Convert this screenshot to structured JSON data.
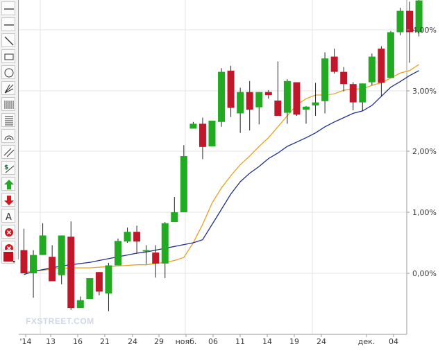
{
  "toolbar": {
    "tools": [
      {
        "name": "horizontal-line-icon"
      },
      {
        "name": "horizontal-line-icon-2"
      },
      {
        "name": "trend-line-icon"
      },
      {
        "name": "rectangle-icon"
      },
      {
        "name": "ellipse-icon"
      },
      {
        "name": "pitchfork-icon"
      },
      {
        "name": "vertical-grid-icon"
      },
      {
        "name": "horizontal-grid-icon"
      },
      {
        "name": "arc-icon"
      },
      {
        "name": "channel-icon"
      },
      {
        "name": "price-label-icon"
      },
      {
        "name": "up-arrow-icon"
      },
      {
        "name": "down-arrow-icon"
      },
      {
        "name": "text-tool-icon",
        "label": "A"
      },
      {
        "name": "delete-icon"
      },
      {
        "name": "delete-all-icon"
      },
      {
        "name": "color-picker-icon"
      }
    ]
  },
  "watermark": "FXSTREET.COM",
  "colors": {
    "up": "#22aa22",
    "down": "#c0182a",
    "ma_fast": "#e8a020",
    "ma_slow": "#1f2f8a",
    "grid": "#e3e3e3"
  },
  "chart_data": {
    "type": "candlestick",
    "x_tick_labels": [
      "'14",
      "13",
      "16",
      "21",
      "24",
      "29",
      "нояб.",
      "06",
      "11",
      "14",
      "19",
      "24",
      "дек.",
      "04"
    ],
    "y_tick_labels": [
      "4,00%",
      "3,00%",
      "2,00%",
      "1,00%",
      "0,00%"
    ],
    "ylim": [
      -0.95,
      4.47
    ],
    "grid": true,
    "candles": [
      {
        "o": 0.38,
        "h": 0.73,
        "l": 0.0,
        "c": 0.0
      },
      {
        "o": 0.0,
        "h": 0.38,
        "l": -0.4,
        "c": 0.3
      },
      {
        "o": 0.3,
        "h": 0.82,
        "l": 0.3,
        "c": 0.62
      },
      {
        "o": 0.27,
        "h": 0.46,
        "l": -0.13,
        "c": -0.13
      },
      {
        "o": -0.03,
        "h": 0.62,
        "l": -0.18,
        "c": 0.62
      },
      {
        "o": 0.6,
        "h": 0.85,
        "l": -0.6,
        "c": -0.57
      },
      {
        "o": -0.57,
        "h": -0.38,
        "l": -0.57,
        "c": -0.44
      },
      {
        "o": -0.42,
        "h": -0.08,
        "l": -0.42,
        "c": -0.08
      },
      {
        "o": 0.02,
        "h": 0.02,
        "l": -0.36,
        "c": -0.3
      },
      {
        "o": -0.33,
        "h": 0.17,
        "l": -0.62,
        "c": 0.13
      },
      {
        "o": 0.13,
        "h": 0.57,
        "l": 0.13,
        "c": 0.53
      },
      {
        "o": 0.52,
        "h": 0.75,
        "l": 0.5,
        "c": 0.68
      },
      {
        "o": 0.68,
        "h": 0.78,
        "l": 0.32,
        "c": 0.52
      },
      {
        "o": 0.38,
        "h": 0.46,
        "l": 0.15,
        "c": 0.38
      },
      {
        "o": 0.34,
        "h": 0.46,
        "l": -0.07,
        "c": 0.16
      },
      {
        "o": 0.16,
        "h": 0.84,
        "l": -0.08,
        "c": 0.82
      },
      {
        "o": 0.84,
        "h": 1.25,
        "l": 0.84,
        "c": 1.0
      },
      {
        "o": 1.0,
        "h": 2.1,
        "l": 1.0,
        "c": 1.92
      },
      {
        "o": 2.37,
        "h": 2.48,
        "l": 2.37,
        "c": 2.45
      },
      {
        "o": 2.45,
        "h": 2.55,
        "l": 1.87,
        "c": 2.07
      },
      {
        "o": 2.08,
        "h": 2.5,
        "l": 2.08,
        "c": 2.5
      },
      {
        "o": 2.48,
        "h": 3.36,
        "l": 2.4,
        "c": 3.3
      },
      {
        "o": 3.32,
        "h": 3.4,
        "l": 2.56,
        "c": 2.71
      },
      {
        "o": 2.62,
        "h": 3.04,
        "l": 2.3,
        "c": 2.97
      },
      {
        "o": 2.97,
        "h": 3.15,
        "l": 2.34,
        "c": 2.68
      },
      {
        "o": 2.72,
        "h": 2.97,
        "l": 2.44,
        "c": 2.97
      },
      {
        "o": 2.97,
        "h": 3.0,
        "l": 2.86,
        "c": 2.92
      },
      {
        "o": 2.83,
        "h": 3.47,
        "l": 2.6,
        "c": 2.58
      },
      {
        "o": 2.63,
        "h": 3.18,
        "l": 2.45,
        "c": 3.15
      },
      {
        "o": 3.13,
        "h": 3.13,
        "l": 2.58,
        "c": 2.6
      },
      {
        "o": 2.68,
        "h": 2.74,
        "l": 2.45,
        "c": 2.73
      },
      {
        "o": 2.75,
        "h": 3.12,
        "l": 2.58,
        "c": 2.8
      },
      {
        "o": 2.82,
        "h": 3.62,
        "l": 2.62,
        "c": 3.52
      },
      {
        "o": 3.55,
        "h": 3.68,
        "l": 3.27,
        "c": 3.3
      },
      {
        "o": 3.3,
        "h": 3.38,
        "l": 2.98,
        "c": 3.1
      },
      {
        "o": 3.1,
        "h": 3.13,
        "l": 2.67,
        "c": 2.8
      },
      {
        "o": 2.8,
        "h": 3.11,
        "l": 2.66,
        "c": 3.11
      },
      {
        "o": 3.13,
        "h": 3.6,
        "l": 3.08,
        "c": 3.55
      },
      {
        "o": 3.68,
        "h": 3.72,
        "l": 2.9,
        "c": 3.12
      },
      {
        "o": 3.2,
        "h": 3.97,
        "l": 3.2,
        "c": 3.95
      },
      {
        "o": 3.95,
        "h": 4.35,
        "l": 3.9,
        "c": 4.3
      },
      {
        "o": 4.3,
        "h": 4.45,
        "l": 3.45,
        "c": 3.95
      },
      {
        "o": 3.95,
        "h": 4.55,
        "l": 3.88,
        "c": 4.47
      }
    ],
    "series": [
      {
        "values": [
          0.01,
          0.04,
          0.05,
          0.07,
          0.08,
          0.09,
          0.09,
          0.09,
          0.1,
          0.11,
          0.12,
          0.13,
          0.14,
          0.14,
          0.16,
          0.18,
          0.21,
          0.26,
          0.5,
          0.8,
          1.15,
          1.4,
          1.6,
          1.78,
          1.92,
          2.08,
          2.22,
          2.4,
          2.58,
          2.76,
          2.86,
          2.92,
          2.92,
          2.94,
          3.0,
          3.02,
          3.02,
          3.08,
          3.12,
          3.2,
          3.28,
          3.32,
          3.42
        ]
      },
      {
        "values": [
          -0.02,
          0.03,
          0.06,
          0.09,
          0.12,
          0.14,
          0.16,
          0.18,
          0.21,
          0.24,
          0.27,
          0.3,
          0.33,
          0.35,
          0.38,
          0.41,
          0.44,
          0.47,
          0.5,
          0.55,
          0.8,
          1.05,
          1.3,
          1.5,
          1.64,
          1.75,
          1.88,
          1.97,
          2.08,
          2.15,
          2.22,
          2.3,
          2.4,
          2.48,
          2.55,
          2.62,
          2.66,
          2.75,
          2.9,
          3.05,
          3.14,
          3.24,
          3.32
        ]
      }
    ]
  }
}
